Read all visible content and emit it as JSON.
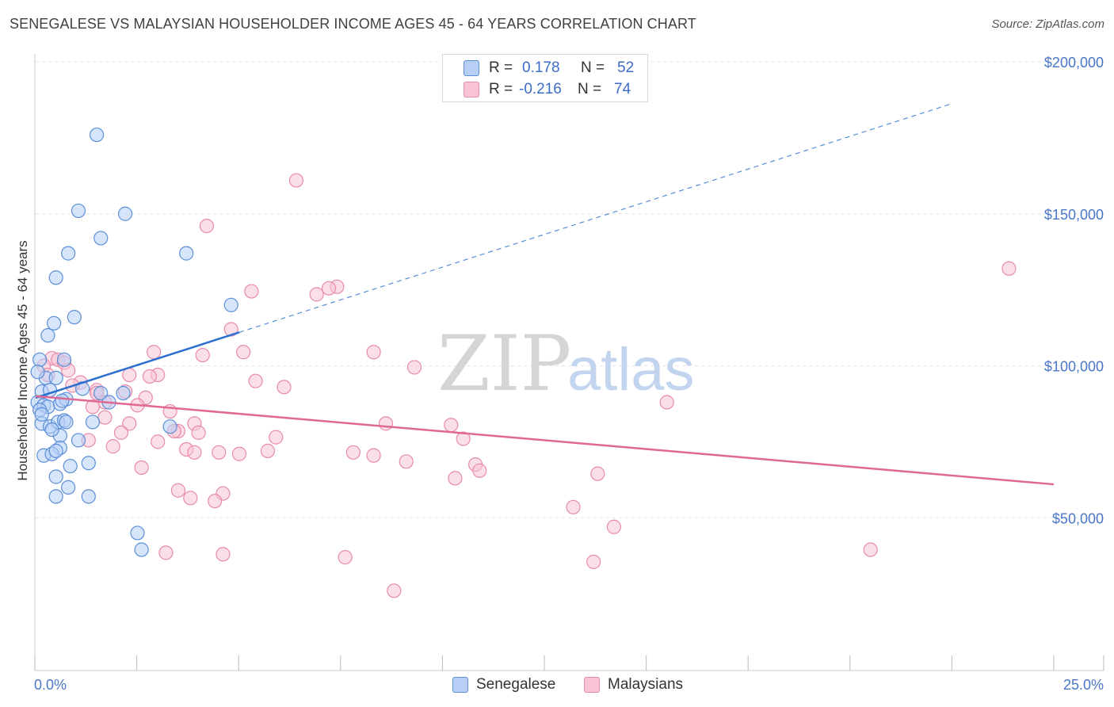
{
  "title": "SENEGALESE VS MALAYSIAN HOUSEHOLDER INCOME AGES 45 - 64 YEARS CORRELATION CHART",
  "source": "Source: ZipAtlas.com",
  "watermark": {
    "part1": "ZIP",
    "part2": "atlas"
  },
  "legend": {
    "rows": [
      {
        "r_label": "R =",
        "r_value": "0.178",
        "n_label": "N =",
        "n_value": "52"
      },
      {
        "r_label": "R =",
        "r_value": "-0.216",
        "n_label": "N =",
        "n_value": "74"
      }
    ]
  },
  "bottom_legend": {
    "series1": "Senegalese",
    "series2": "Malaysians"
  },
  "colors": {
    "blue_fill": "#b7cff5",
    "blue_stroke": "#5b8fd8",
    "blue_line": "#2d6fd1",
    "pink_fill": "#f8c4d5",
    "pink_stroke": "#e88aa9",
    "pink_line": "#e06894",
    "axis_text": "#4a76c9",
    "grid": "#e4e4e4"
  },
  "chart_data": {
    "type": "scatter",
    "title": "SENEGALESE VS MALAYSIAN HOUSEHOLDER INCOME AGES 45 - 64 YEARS CORRELATION CHART",
    "xlabel": "",
    "ylabel": "Householder Income Ages 45 - 64 years",
    "xlim": [
      0,
      25
    ],
    "ylim": [
      0,
      205000
    ],
    "x_tick_labels": [
      "0.0%",
      "25.0%"
    ],
    "y_ticks": [
      50000,
      100000,
      150000,
      200000
    ],
    "y_tick_labels": [
      "$50,000",
      "$100,000",
      "$150,000",
      "$200,000"
    ],
    "grid": true,
    "series": [
      {
        "name": "Senegalese",
        "R": 0.178,
        "N": 52,
        "trend": {
          "x0": 0,
          "y0": 89500,
          "x1": 5,
          "y1": 111000,
          "extend_dashed_to_x": 22.5
        },
        "points": [
          [
            1.5,
            176000
          ],
          [
            1.05,
            151000
          ],
          [
            2.2,
            150000
          ],
          [
            1.6,
            142000
          ],
          [
            3.7,
            137000
          ],
          [
            0.8,
            137000
          ],
          [
            0.5,
            129000
          ],
          [
            4.8,
            120000
          ],
          [
            0.95,
            116000
          ],
          [
            0.45,
            114000
          ],
          [
            0.3,
            110000
          ],
          [
            0.1,
            102000
          ],
          [
            0.7,
            102000
          ],
          [
            0.25,
            96000
          ],
          [
            0.5,
            96000
          ],
          [
            2.15,
            91000
          ],
          [
            1.6,
            91000
          ],
          [
            1.15,
            92500
          ],
          [
            0.15,
            91500
          ],
          [
            0.35,
            92000
          ],
          [
            0.05,
            88000
          ],
          [
            0.2,
            87000
          ],
          [
            0.3,
            86500
          ],
          [
            0.1,
            85500
          ],
          [
            0.6,
            87500
          ],
          [
            0.75,
            89000
          ],
          [
            0.65,
            88500
          ],
          [
            1.8,
            88000
          ],
          [
            0.15,
            81000
          ],
          [
            0.35,
            80000
          ],
          [
            0.55,
            81500
          ],
          [
            0.7,
            82000
          ],
          [
            0.75,
            81500
          ],
          [
            1.4,
            81500
          ],
          [
            3.3,
            80000
          ],
          [
            0.6,
            77000
          ],
          [
            1.05,
            75500
          ],
          [
            0.6,
            73000
          ],
          [
            0.2,
            70500
          ],
          [
            0.4,
            71000
          ],
          [
            0.5,
            72000
          ],
          [
            1.3,
            68000
          ],
          [
            0.85,
            67000
          ],
          [
            0.5,
            63500
          ],
          [
            0.8,
            60000
          ],
          [
            0.5,
            57000
          ],
          [
            1.3,
            57000
          ],
          [
            2.5,
            45000
          ],
          [
            2.6,
            39500
          ],
          [
            0.05,
            98000
          ],
          [
            0.15,
            84000
          ],
          [
            0.4,
            79000
          ]
        ]
      },
      {
        "name": "Malaysians",
        "R": -0.216,
        "N": 74,
        "trend": {
          "x0": 0,
          "y0": 90000,
          "x1": 25,
          "y1": 61000
        },
        "points": [
          [
            6.4,
            161000
          ],
          [
            4.2,
            146000
          ],
          [
            23.9,
            132000
          ],
          [
            7.4,
            126000
          ],
          [
            7.2,
            125500
          ],
          [
            5.3,
            124500
          ],
          [
            6.9,
            123500
          ],
          [
            4.8,
            112000
          ],
          [
            2.9,
            104500
          ],
          [
            8.3,
            104500
          ],
          [
            5.1,
            104500
          ],
          [
            4.1,
            103500
          ],
          [
            0.4,
            102500
          ],
          [
            0.55,
            102000
          ],
          [
            0.2,
            100000
          ],
          [
            0.7,
            101000
          ],
          [
            9.3,
            99500
          ],
          [
            0.8,
            98500
          ],
          [
            2.3,
            97000
          ],
          [
            3.0,
            97000
          ],
          [
            2.8,
            96500
          ],
          [
            5.4,
            95000
          ],
          [
            1.1,
            94500
          ],
          [
            0.9,
            93500
          ],
          [
            6.1,
            93000
          ],
          [
            1.5,
            92000
          ],
          [
            2.7,
            89500
          ],
          [
            1.7,
            88000
          ],
          [
            2.5,
            87000
          ],
          [
            1.4,
            86500
          ],
          [
            15.5,
            88000
          ],
          [
            3.3,
            85000
          ],
          [
            1.7,
            83000
          ],
          [
            2.3,
            81000
          ],
          [
            3.9,
            81000
          ],
          [
            8.6,
            81000
          ],
          [
            10.2,
            80500
          ],
          [
            2.1,
            78000
          ],
          [
            3.5,
            78500
          ],
          [
            4.0,
            78000
          ],
          [
            1.3,
            75500
          ],
          [
            10.5,
            76000
          ],
          [
            5.9,
            76500
          ],
          [
            3.0,
            75000
          ],
          [
            1.9,
            73500
          ],
          [
            3.7,
            72500
          ],
          [
            5.7,
            72000
          ],
          [
            4.5,
            71500
          ],
          [
            3.9,
            71500
          ],
          [
            7.8,
            71500
          ],
          [
            5.0,
            71000
          ],
          [
            8.3,
            70500
          ],
          [
            9.1,
            68500
          ],
          [
            10.8,
            67500
          ],
          [
            2.6,
            66500
          ],
          [
            10.9,
            65500
          ],
          [
            13.8,
            64500
          ],
          [
            10.3,
            63000
          ],
          [
            3.5,
            59000
          ],
          [
            4.6,
            58000
          ],
          [
            3.8,
            56500
          ],
          [
            4.4,
            55500
          ],
          [
            13.2,
            53500
          ],
          [
            14.2,
            47000
          ],
          [
            3.2,
            38500
          ],
          [
            4.6,
            38000
          ],
          [
            7.6,
            37000
          ],
          [
            13.7,
            35500
          ],
          [
            20.5,
            39500
          ],
          [
            8.8,
            26000
          ],
          [
            0.3,
            97000
          ],
          [
            1.5,
            91000
          ],
          [
            2.2,
            91500
          ],
          [
            3.4,
            78500
          ]
        ]
      }
    ]
  }
}
